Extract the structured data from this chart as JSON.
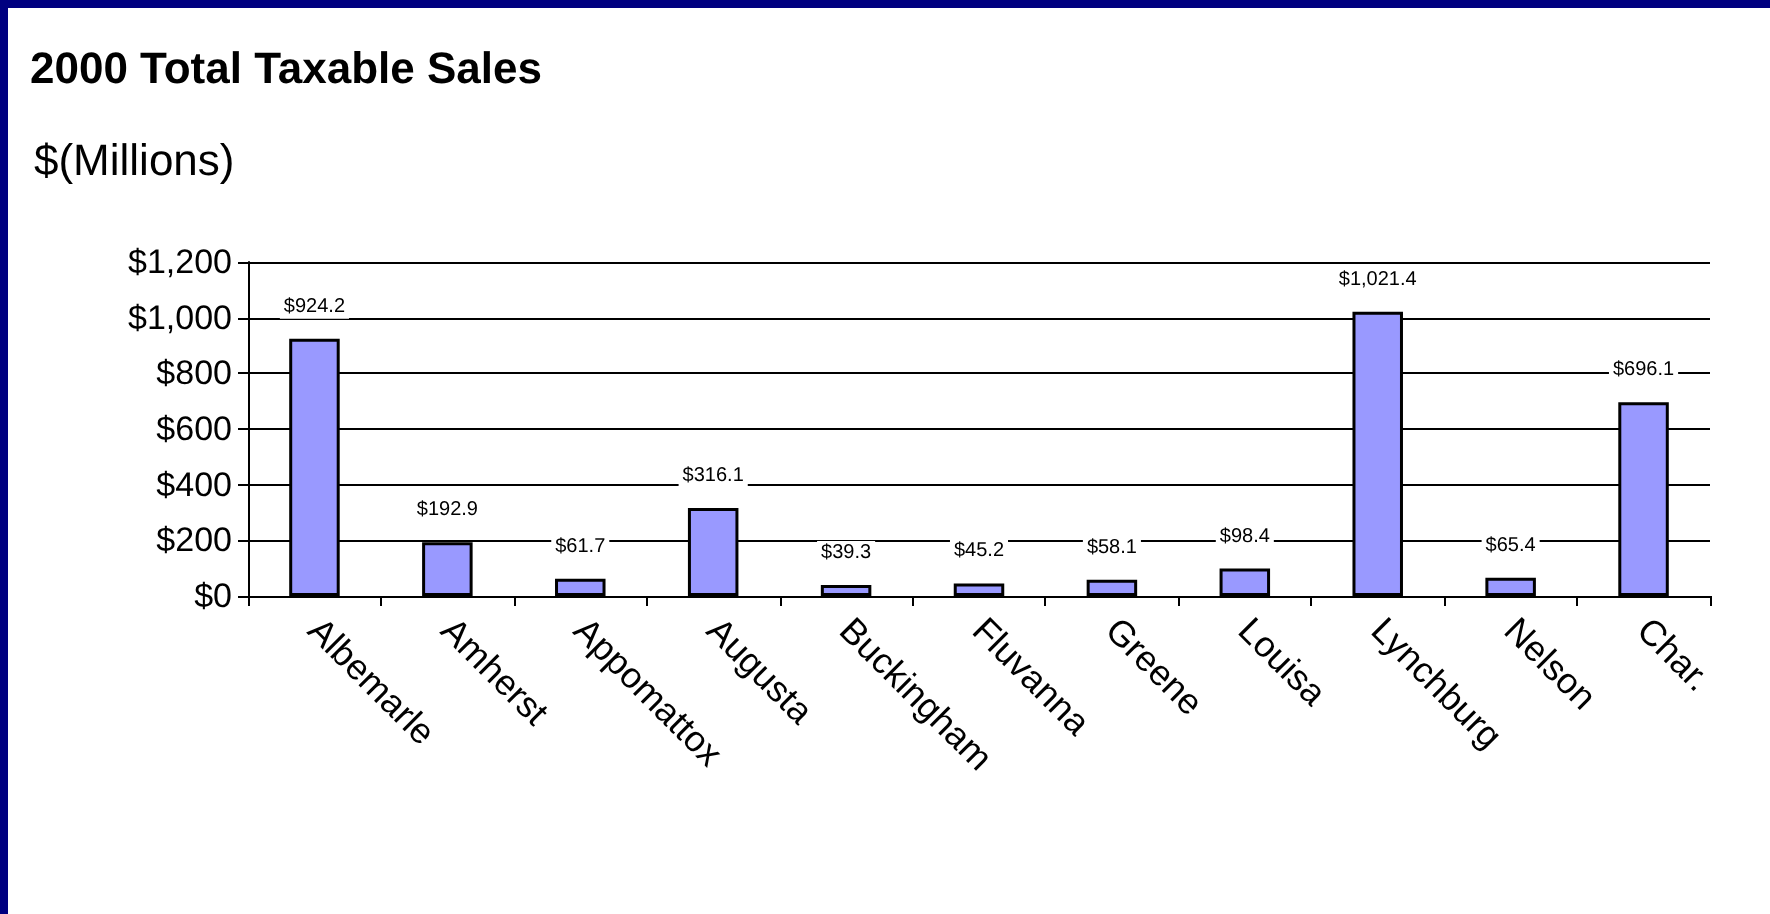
{
  "chart_data": {
    "type": "bar",
    "title": "2000 Total Taxable Sales",
    "ylabel": "$(Millions)",
    "categories": [
      "Albemarle",
      "Amherst",
      "Appomattox",
      "Augusta",
      "Buckingham",
      "Fluvanna",
      "Greene",
      "Louisa",
      "Lynchburg",
      "Nelson",
      "Char."
    ],
    "values": [
      924.2,
      192.9,
      61.7,
      316.1,
      39.3,
      45.2,
      58.1,
      98.4,
      1021.4,
      65.4,
      696.1
    ],
    "value_labels": [
      "$924.2",
      "$192.9",
      "$61.7",
      "$316.1",
      "$39.3",
      "$45.2",
      "$58.1",
      "$98.4",
      "$1,021.4",
      "$65.4",
      "$696.1"
    ],
    "color": "#9999ff",
    "ylim": [
      0,
      1200
    ],
    "yticks": [
      {
        "value": 0,
        "label": "$0"
      },
      {
        "value": 200,
        "label": "$200"
      },
      {
        "value": 400,
        "label": "$400"
      },
      {
        "value": 600,
        "label": "$600"
      },
      {
        "value": 800,
        "label": "$800"
      },
      {
        "value": 1000,
        "label": "$1,000"
      },
      {
        "value": 1200,
        "label": "$1,200"
      }
    ],
    "grid": "y"
  }
}
